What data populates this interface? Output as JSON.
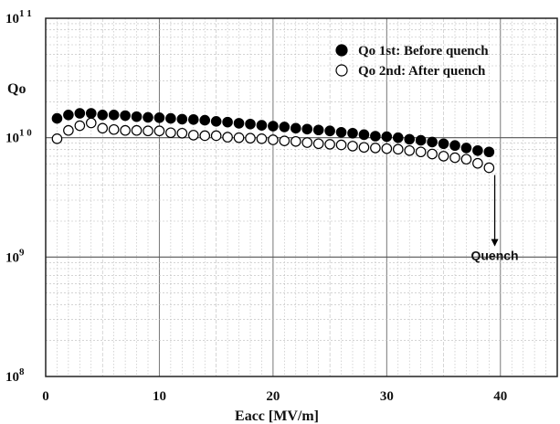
{
  "chart_data": {
    "type": "scatter",
    "xlabel": "Eacc [MV/m]",
    "ylabel": "Qo",
    "xlim": [
      0,
      45
    ],
    "ylim": [
      100000000,
      100000000000
    ],
    "yscale": "log",
    "grid": true,
    "legend_position": "top-right",
    "x_ticks": [
      0,
      10,
      20,
      30,
      40
    ],
    "x_tick_labels": [
      "0",
      "10",
      "20",
      "30",
      "40"
    ],
    "y_ticks": [
      {
        "value": 100000000,
        "mantissa": "10",
        "exponent": "8"
      },
      {
        "value": 1000000000,
        "mantissa": "10",
        "exponent": "9"
      },
      {
        "value": 10000000000,
        "mantissa": "10",
        "exponent": "1 0"
      },
      {
        "value": 100000000000,
        "mantissa": "10",
        "exponent": "1 1"
      }
    ],
    "series": [
      {
        "name": "Qo 1st: Before quench",
        "marker": "filled-circle",
        "color": "#000000",
        "x": [
          1,
          2,
          3,
          4,
          5,
          6,
          7,
          8,
          9,
          10,
          11,
          12,
          13,
          14,
          15,
          16,
          17,
          18,
          19,
          20,
          21,
          22,
          23,
          24,
          25,
          26,
          27,
          28,
          29,
          30,
          31,
          32,
          33,
          34,
          35,
          36,
          37,
          38,
          39
        ],
        "y": [
          14500000000,
          15500000000,
          16000000000,
          16000000000,
          15500000000,
          15500000000,
          15300000000,
          15000000000,
          14800000000,
          14700000000,
          14500000000,
          14300000000,
          14200000000,
          14000000000,
          13700000000,
          13500000000,
          13200000000,
          13000000000,
          12700000000,
          12500000000,
          12300000000,
          12000000000,
          11800000000,
          11600000000,
          11400000000,
          11100000000,
          10900000000,
          10600000000,
          10300000000,
          10200000000,
          10000000000,
          9700000000,
          9500000000,
          9200000000,
          8900000000,
          8600000000,
          8200000000,
          7800000000,
          7600000000
        ]
      },
      {
        "name": "Qo 2nd: After quench",
        "marker": "open-circle",
        "color": "#000000",
        "x": [
          1,
          2,
          3,
          4,
          5,
          6,
          7,
          8,
          9,
          10,
          11,
          12,
          13,
          14,
          15,
          16,
          17,
          18,
          19,
          20,
          21,
          22,
          23,
          24,
          25,
          26,
          27,
          28,
          29,
          30,
          31,
          32,
          33,
          34,
          35,
          36,
          37,
          38,
          39
        ],
        "y": [
          9800000000,
          11500000000,
          12600000000,
          13300000000,
          12000000000,
          11700000000,
          11500000000,
          11500000000,
          11400000000,
          11400000000,
          11000000000,
          10900000000,
          10500000000,
          10400000000,
          10400000000,
          10100000000,
          10000000000,
          9900000000,
          9800000000,
          9600000000,
          9400000000,
          9300000000,
          9100000000,
          8900000000,
          8800000000,
          8700000000,
          8500000000,
          8300000000,
          8200000000,
          8100000000,
          8000000000,
          7800000000,
          7600000000,
          7300000000,
          7000000000,
          6800000000,
          6600000000,
          6100000000,
          5600000000
        ]
      }
    ],
    "annotations": [
      {
        "text": "Quench",
        "arrow_from": [
          39.5,
          5600000000
        ],
        "arrow_to": [
          39.5,
          1250000000
        ]
      }
    ]
  }
}
